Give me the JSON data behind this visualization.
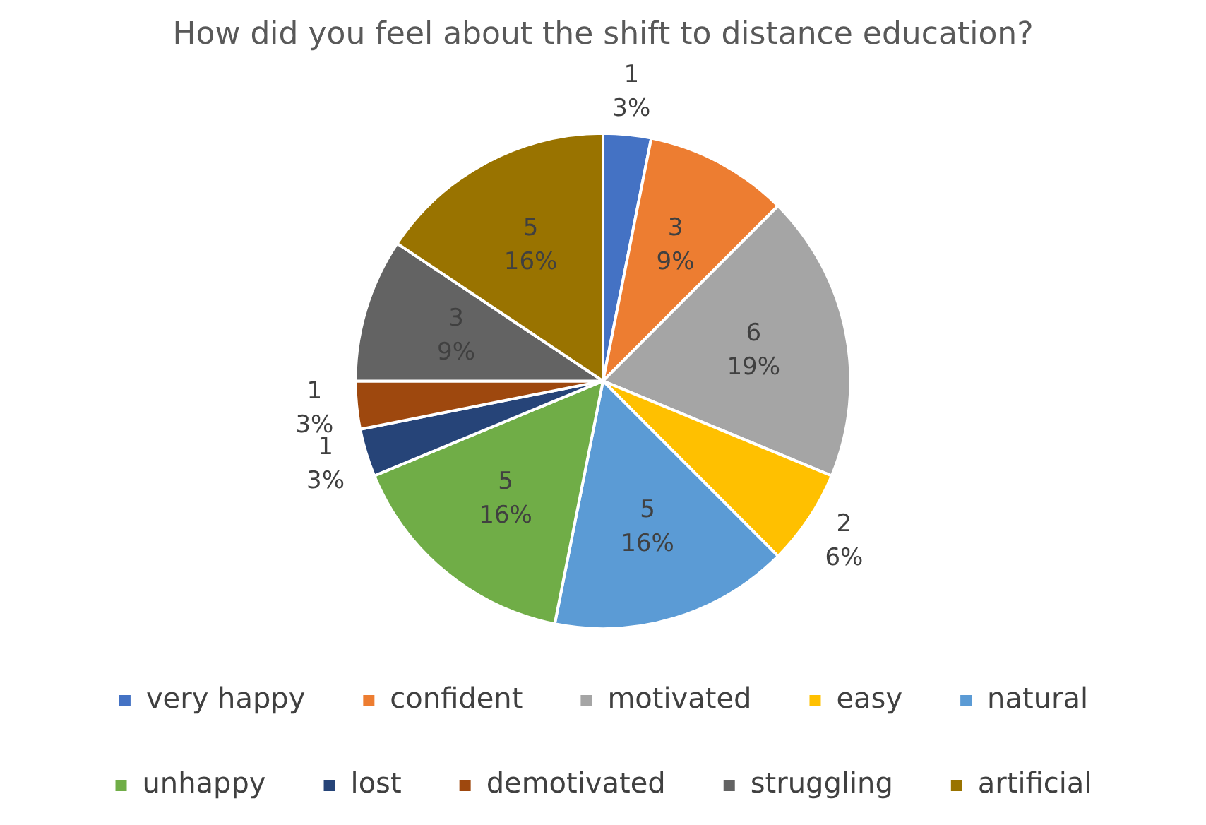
{
  "chart_data": {
    "type": "pie",
    "title": "How did you feel about the shift to distance education?",
    "categories": [
      "very happy",
      "confident",
      "motivated",
      "easy",
      "natural",
      "unhappy",
      "lost",
      "demotivated",
      "struggling",
      "artificial"
    ],
    "values": [
      1,
      3,
      6,
      2,
      5,
      5,
      1,
      1,
      3,
      5
    ],
    "colors": [
      "#4472c4",
      "#ed7d31",
      "#a5a5a5",
      "#ffc000",
      "#5b9bd5",
      "#70ad47",
      "#264478",
      "#9e480e",
      "#636363",
      "#997300"
    ],
    "value_labels": [
      "1\n3%",
      "3\n9%",
      "6\n19%",
      "2\n6%",
      "5\n16%",
      "5\n16%",
      "1\n3%",
      "1\n3%",
      "3\n9%",
      "5\n16%"
    ],
    "legend": "bottom"
  }
}
